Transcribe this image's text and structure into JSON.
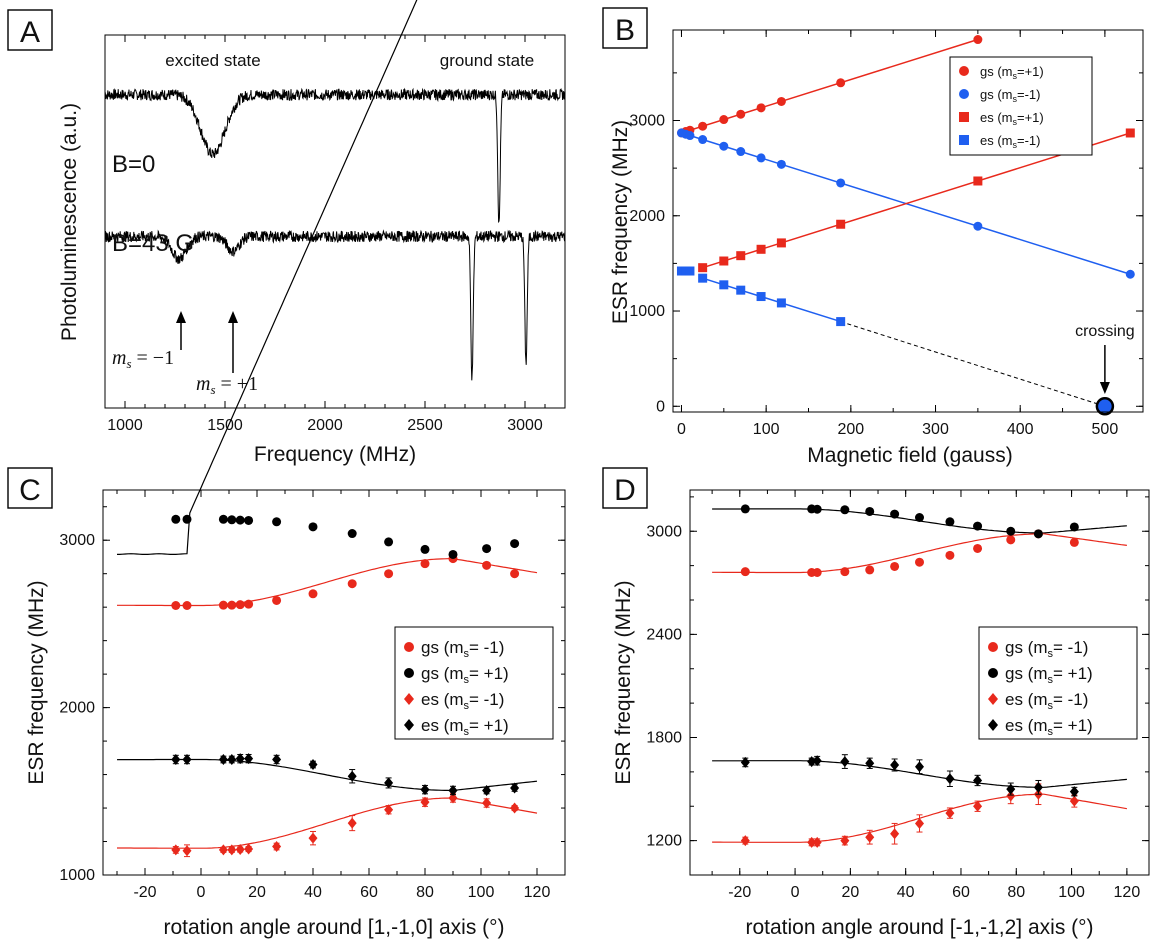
{
  "colors": {
    "red": "#e8291c",
    "blue": "#1f5ff0",
    "black": "#000000",
    "diamond_red": "#e8291c"
  },
  "chart_data": [
    {
      "panel": "A",
      "type": "line",
      "xlabel": "Frequency (MHz)",
      "ylabel": "Photoluminescence (a.u.)",
      "xlim": [
        900,
        3200
      ],
      "xticks": [
        1000,
        1500,
        2000,
        2500,
        3000
      ],
      "ylim": [
        0,
        1
      ],
      "y_ticks_labeled": false,
      "annotations": [
        "excited state",
        "ground state",
        "B=0",
        "B=43 G"
      ],
      "arrow_labels": [
        "m_s = -1",
        "m_s = +1"
      ],
      "arrow_positions_mhz": [
        1280,
        1540
      ],
      "series": [
        {
          "name": "B=0",
          "baseline": 0.84,
          "dips": [
            [
              1440,
              120,
              0.16
            ],
            [
              2870,
              12,
              0.35
            ]
          ]
        },
        {
          "name": "B=43 G",
          "baseline": 0.46,
          "dips": [
            [
              1270,
              70,
              0.06
            ],
            [
              1540,
              60,
              0.04
            ],
            [
              2735,
              12,
              0.38
            ],
            [
              3005,
              12,
              0.34
            ]
          ]
        }
      ]
    },
    {
      "panel": "B",
      "type": "scatter",
      "xlabel": "Magnetic field (gauss)",
      "ylabel": "ESR frequency (MHz)",
      "xlim": [
        -10,
        545
      ],
      "ylim": [
        -60,
        3950
      ],
      "xticks": [
        0,
        100,
        200,
        300,
        400,
        500
      ],
      "yticks": [
        0,
        1000,
        2000,
        3000
      ],
      "legend_position": "top-right",
      "annotation": "crossing",
      "crossing_point": [
        500,
        0
      ],
      "series": [
        {
          "name": "gs (ms=+1)",
          "marker": "circle",
          "color": "red",
          "x": [
            0,
            5,
            10,
            25,
            50,
            70,
            94,
            118,
            188,
            350
          ],
          "y": [
            2870,
            2884,
            2898,
            2940,
            3010,
            3066,
            3133,
            3200,
            3396,
            3850
          ],
          "fit": [
            [
              0,
              2870
            ],
            [
              350,
              3850
            ]
          ]
        },
        {
          "name": "gs (ms=-1)",
          "marker": "circle",
          "color": "blue",
          "x": [
            0,
            5,
            10,
            25,
            50,
            70,
            94,
            118,
            188,
            350,
            530
          ],
          "y": [
            2870,
            2856,
            2842,
            2800,
            2730,
            2674,
            2607,
            2540,
            2344,
            1890,
            1386
          ],
          "fit": [
            [
              0,
              2870
            ],
            [
              530,
              1386
            ]
          ]
        },
        {
          "name": "es (ms=+1)",
          "marker": "square",
          "color": "red",
          "x": [
            25,
            50,
            70,
            94,
            118,
            188,
            350,
            530
          ],
          "y": [
            1455,
            1525,
            1581,
            1648,
            1715,
            1911,
            2365,
            2869
          ],
          "fit": [
            [
              25,
              1455
            ],
            [
              530,
              2869
            ]
          ]
        },
        {
          "name": "es (ms=-1)",
          "marker": "square",
          "color": "blue",
          "x": [
            0,
            5,
            10,
            25,
            50,
            70,
            94,
            118,
            188
          ],
          "y": [
            1420,
            1420,
            1420,
            1345,
            1275,
            1219,
            1152,
            1085,
            889
          ],
          "fit": [
            [
              25,
              1345
            ],
            [
              188,
              889
            ]
          ],
          "extrapolation": [
            [
              188,
              889
            ],
            [
              500,
              0
            ]
          ]
        }
      ]
    },
    {
      "panel": "C",
      "type": "scatter",
      "xlabel": "rotation angle around [1,-1,0] axis (°)",
      "ylabel": "ESR frequency (MHz)",
      "xlim": [
        -35,
        130
      ],
      "ylim": [
        1000,
        3300
      ],
      "xticks": [
        -20,
        0,
        20,
        40,
        60,
        80,
        100,
        120
      ],
      "yticks": [
        1000,
        2000,
        3000
      ],
      "legend_position": "center-right",
      "series": [
        {
          "name": "gs (ms= -1)",
          "marker": "circle",
          "color": "red",
          "x": [
            -9,
            -5,
            8,
            11,
            14,
            17,
            27,
            40,
            54,
            67,
            80,
            90,
            102,
            112
          ],
          "y": [
            2610,
            2610,
            2612,
            2612,
            2615,
            2618,
            2640,
            2680,
            2740,
            2800,
            2860,
            2890,
            2850,
            2800
          ]
        },
        {
          "name": "gs (ms= +1)",
          "marker": "circle",
          "color": "black",
          "x": [
            -9,
            -5,
            8,
            11,
            14,
            17,
            27,
            40,
            54,
            67,
            80,
            90,
            102,
            112
          ],
          "y": [
            3125,
            3125,
            3125,
            3122,
            3120,
            3118,
            3110,
            3080,
            3040,
            2990,
            2945,
            2915,
            2950,
            2980
          ]
        },
        {
          "name": "es (ms= -1)",
          "marker": "diamond",
          "color": "red",
          "x": [
            -9,
            -5,
            8,
            11,
            14,
            17,
            27,
            40,
            54,
            67,
            80,
            90,
            102,
            112
          ],
          "y": [
            1150,
            1145,
            1150,
            1150,
            1152,
            1155,
            1170,
            1220,
            1310,
            1390,
            1435,
            1460,
            1430,
            1400
          ],
          "err": [
            20,
            35,
            15,
            15,
            15,
            15,
            20,
            40,
            45,
            25,
            25,
            25,
            25,
            15
          ]
        },
        {
          "name": "es (ms= +1)",
          "marker": "diamond",
          "color": "black",
          "x": [
            -9,
            -5,
            8,
            11,
            14,
            17,
            27,
            40,
            54,
            67,
            80,
            90,
            102,
            112
          ],
          "y": [
            1690,
            1690,
            1690,
            1690,
            1695,
            1695,
            1690,
            1660,
            1590,
            1550,
            1510,
            1505,
            1505,
            1520
          ],
          "err": [
            25,
            25,
            20,
            20,
            25,
            25,
            25,
            20,
            40,
            30,
            25,
            25,
            20,
            20
          ]
        }
      ],
      "fits": [
        {
          "color": "black",
          "min": 2915,
          "max": 3125,
          "center": 3020,
          "amp": 105,
          "peak": -5,
          "phase_x": 92,
          "asym": true
        },
        {
          "color": "red",
          "min": 2610,
          "max": 2890,
          "peak": 90
        },
        {
          "color": "black",
          "min": 1505,
          "max": 1690,
          "peak": 90,
          "invert": true
        },
        {
          "color": "red",
          "min": 1160,
          "max": 1460,
          "peak": 90
        }
      ]
    },
    {
      "panel": "D",
      "type": "scatter",
      "xlabel": "rotation angle around [-1,-1,2] axis (°)",
      "ylabel": "ESR frequency (MHz)",
      "xlim": [
        -38,
        128
      ],
      "ylim": [
        1000,
        3240
      ],
      "xticks": [
        -20,
        0,
        20,
        40,
        60,
        80,
        100,
        120
      ],
      "yticks": [
        1200,
        1800,
        2400,
        3000
      ],
      "legend_position": "center-right",
      "series": [
        {
          "name": "gs (ms= -1)",
          "marker": "circle",
          "color": "red",
          "x": [
            -18,
            6,
            8,
            18,
            27,
            36,
            45,
            56,
            66,
            78,
            88,
            101
          ],
          "y": [
            2765,
            2760,
            2760,
            2765,
            2775,
            2795,
            2820,
            2860,
            2900,
            2950,
            2985,
            2935
          ]
        },
        {
          "name": "gs (ms= +1)",
          "marker": "circle",
          "color": "black",
          "x": [
            -18,
            6,
            8,
            18,
            27,
            36,
            45,
            56,
            66,
            78,
            88,
            101
          ],
          "y": [
            3130,
            3130,
            3128,
            3125,
            3115,
            3100,
            3080,
            3055,
            3030,
            3000,
            2985,
            3025
          ]
        },
        {
          "name": "es (ms= -1)",
          "marker": "diamond",
          "color": "red",
          "x": [
            -18,
            6,
            8,
            18,
            27,
            36,
            45,
            56,
            66,
            78,
            88,
            101
          ],
          "y": [
            1200,
            1190,
            1190,
            1200,
            1220,
            1240,
            1300,
            1360,
            1400,
            1460,
            1470,
            1430
          ],
          "err": [
            20,
            20,
            20,
            25,
            40,
            60,
            50,
            30,
            30,
            45,
            60,
            35
          ]
        },
        {
          "name": "es (ms= +1)",
          "marker": "diamond",
          "color": "black",
          "x": [
            -18,
            6,
            8,
            18,
            27,
            36,
            45,
            56,
            66,
            78,
            88,
            101
          ],
          "y": [
            1655,
            1660,
            1665,
            1660,
            1650,
            1640,
            1630,
            1560,
            1550,
            1500,
            1510,
            1485
          ],
          "err": [
            25,
            20,
            25,
            40,
            30,
            35,
            40,
            45,
            30,
            35,
            40,
            25
          ]
        }
      ],
      "fits": [
        {
          "color": "black",
          "min": 2990,
          "max": 3130,
          "peak": 90,
          "invert": true
        },
        {
          "color": "red",
          "min": 2760,
          "max": 2985,
          "peak": 90
        },
        {
          "color": "black",
          "min": 1510,
          "max": 1665,
          "peak": 90,
          "invert": true
        },
        {
          "color": "red",
          "min": 1190,
          "max": 1470,
          "peak": 90
        }
      ]
    }
  ],
  "panel_letters": [
    "A",
    "B",
    "C",
    "D"
  ]
}
